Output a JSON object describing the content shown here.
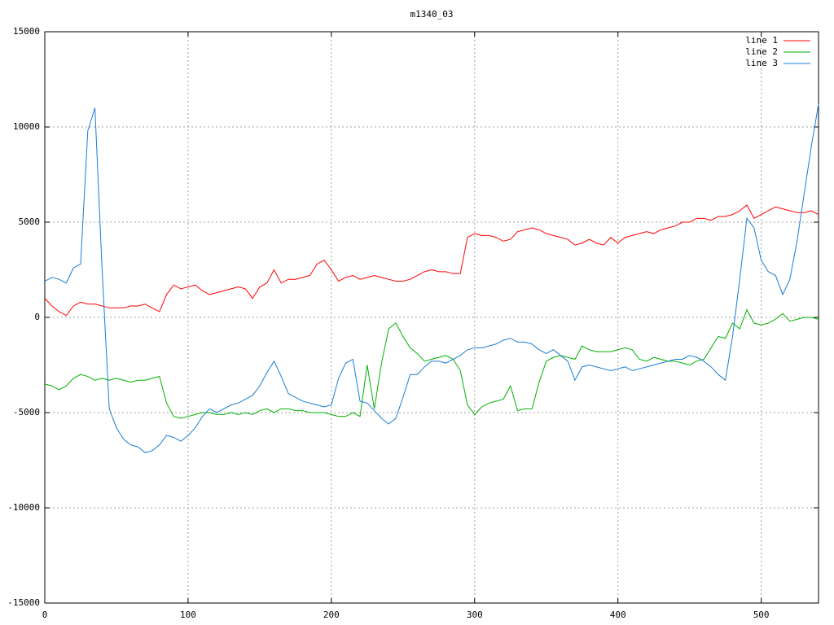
{
  "chart_data": {
    "type": "line",
    "title": "m1340_03",
    "x": [
      0,
      5,
      10,
      15,
      20,
      25,
      30,
      35,
      40,
      45,
      50,
      55,
      60,
      65,
      70,
      75,
      80,
      85,
      90,
      95,
      100,
      105,
      110,
      115,
      120,
      125,
      130,
      135,
      140,
      145,
      150,
      155,
      160,
      165,
      170,
      175,
      180,
      185,
      190,
      195,
      200,
      205,
      210,
      215,
      220,
      225,
      230,
      235,
      240,
      245,
      250,
      255,
      260,
      265,
      270,
      275,
      280,
      285,
      290,
      295,
      300,
      305,
      310,
      315,
      320,
      325,
      330,
      335,
      340,
      345,
      350,
      355,
      360,
      365,
      370,
      375,
      380,
      385,
      390,
      395,
      400,
      405,
      410,
      415,
      420,
      425,
      430,
      435,
      440,
      445,
      450,
      455,
      460,
      465,
      470,
      475,
      480,
      485,
      490,
      495,
      500,
      505,
      510,
      515,
      520,
      525,
      530,
      535,
      540
    ],
    "series": [
      {
        "name": "line 1",
        "color": "#ff0000",
        "values": [
          1000,
          600,
          300,
          100,
          600,
          800,
          700,
          700,
          600,
          500,
          500,
          500,
          600,
          600,
          700,
          500,
          300,
          1200,
          1700,
          1500,
          1600,
          1700,
          1400,
          1200,
          1300,
          1400,
          1500,
          1600,
          1500,
          1000,
          1600,
          1800,
          2500,
          1800,
          2000,
          2000,
          2100,
          2200,
          2800,
          3000,
          2500,
          1900,
          2100,
          2200,
          2000,
          2100,
          2200,
          2100,
          2000,
          1900,
          1900,
          2000,
          2200,
          2400,
          2500,
          2400,
          2400,
          2300,
          2300,
          4200,
          4400,
          4300,
          4300,
          4200,
          4000,
          4100,
          4500,
          4600,
          4700,
          4600,
          4400,
          4300,
          4200,
          4100,
          3800,
          3900,
          4100,
          3900,
          3800,
          4200,
          3900,
          4200,
          4300,
          4400,
          4500,
          4400,
          4600,
          4700,
          4800,
          5000,
          5000,
          5200,
          5200,
          5100,
          5300,
          5300,
          5400,
          5600,
          5900,
          5200,
          5400,
          5600,
          5800,
          5700,
          5600,
          5500,
          5500,
          5600,
          5400
        ]
      },
      {
        "name": "line 2",
        "color": "#00b000",
        "values": [
          -3500,
          -3600,
          -3800,
          -3600,
          -3200,
          -3000,
          -3100,
          -3300,
          -3200,
          -3300,
          -3200,
          -3300,
          -3400,
          -3300,
          -3300,
          -3200,
          -3100,
          -4500,
          -5200,
          -5300,
          -5200,
          -5100,
          -5000,
          -5000,
          -5100,
          -5100,
          -5000,
          -5100,
          -5000,
          -5100,
          -4900,
          -4800,
          -5000,
          -4800,
          -4800,
          -4900,
          -4900,
          -5000,
          -5000,
          -5000,
          -5100,
          -5200,
          -5200,
          -5000,
          -5200,
          -2500,
          -4800,
          -2400,
          -600,
          -300,
          -1000,
          -1600,
          -1900,
          -2300,
          -2200,
          -2100,
          -2000,
          -2200,
          -2800,
          -4600,
          -5100,
          -4700,
          -4500,
          -4400,
          -4300,
          -3600,
          -4900,
          -4800,
          -4800,
          -3400,
          -2300,
          -2100,
          -2000,
          -2100,
          -2200,
          -1500,
          -1700,
          -1800,
          -1800,
          -1800,
          -1700,
          -1600,
          -1700,
          -2200,
          -2300,
          -2100,
          -2200,
          -2300,
          -2300,
          -2400,
          -2500,
          -2300,
          -2200,
          -1600,
          -1000,
          -1100,
          -300,
          -600,
          400,
          -300,
          -400,
          -300,
          -100,
          200,
          -200,
          -100,
          0,
          0,
          -100
        ]
      },
      {
        "name": "line 3",
        "color": "#1a7dd4",
        "values": [
          1900,
          2100,
          2000,
          1800,
          2600,
          2800,
          9800,
          11000,
          2500,
          -4800,
          -5800,
          -6400,
          -6700,
          -6800,
          -7100,
          -7000,
          -6700,
          -6200,
          -6300,
          -6500,
          -6200,
          -5800,
          -5200,
          -4800,
          -5000,
          -4800,
          -4600,
          -4500,
          -4300,
          -4100,
          -3600,
          -2900,
          -2300,
          -3100,
          -4000,
          -4200,
          -4400,
          -4500,
          -4600,
          -4700,
          -4600,
          -3200,
          -2400,
          -2200,
          -4400,
          -4500,
          -4900,
          -5300,
          -5600,
          -5300,
          -4200,
          -3000,
          -3000,
          -2600,
          -2300,
          -2300,
          -2400,
          -2200,
          -2000,
          -1700,
          -1600,
          -1600,
          -1500,
          -1400,
          -1200,
          -1100,
          -1300,
          -1300,
          -1400,
          -1700,
          -1900,
          -1700,
          -2000,
          -2300,
          -3300,
          -2600,
          -2500,
          -2600,
          -2700,
          -2800,
          -2700,
          -2600,
          -2800,
          -2700,
          -2600,
          -2500,
          -2400,
          -2300,
          -2200,
          -2200,
          -2000,
          -2100,
          -2300,
          -2600,
          -3000,
          -3300,
          -1000,
          2000,
          5200,
          4700,
          3000,
          2400,
          2200,
          1200,
          2000,
          4000,
          6500,
          9000,
          11200
        ]
      }
    ],
    "xlim": [
      0,
      540
    ],
    "xticks": [
      0,
      100,
      200,
      300,
      400,
      500
    ],
    "ylim": [
      -15000,
      15000
    ],
    "yticks": [
      -15000,
      -10000,
      -5000,
      0,
      5000,
      10000,
      15000
    ],
    "grid": true,
    "legend": "top-right"
  }
}
